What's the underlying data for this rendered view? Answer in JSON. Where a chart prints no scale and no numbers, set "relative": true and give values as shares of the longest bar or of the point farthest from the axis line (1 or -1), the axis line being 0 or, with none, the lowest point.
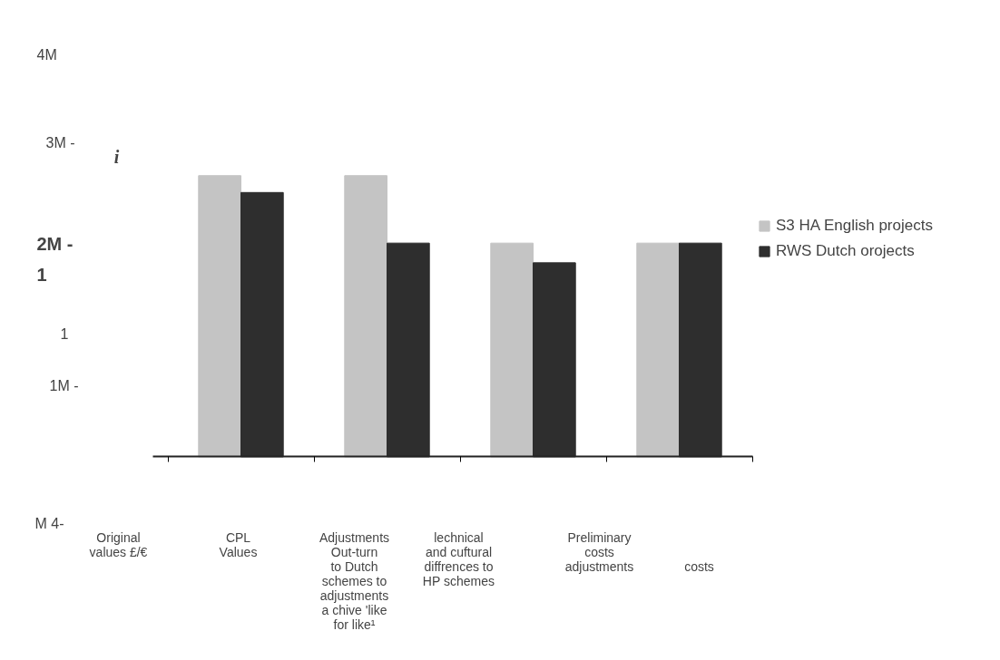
{
  "chart_data": {
    "type": "bar",
    "relative": true,
    "legend": "right",
    "categories": [
      null,
      null,
      null,
      null
    ],
    "series": [
      {
        "name": "S3 HA English projects",
        "color": "#c4c4c4",
        "values": [
          1,
          1,
          0.76,
          0.76
        ]
      },
      {
        "name": "RWS Dutch orojects",
        "color": "#2e2e2e",
        "values": [
          0.94,
          0.76,
          0.69,
          0.76
        ]
      }
    ],
    "annotations": [
      "4M",
      "3M -",
      "i",
      "2M -",
      "1",
      "1",
      "1M -",
      "M 4-",
      "Original\nvalues £/€",
      "CPL\nValues",
      "Adjustments\nOut-turn\nto Dutch\nschemes to\nadjustments\na chive 'like\nfor like¹",
      "lechnical\nand cuftural\ndiffrences to\nHP schemes",
      "Preliminary\ncosts\nadjustments",
      "costs"
    ]
  }
}
